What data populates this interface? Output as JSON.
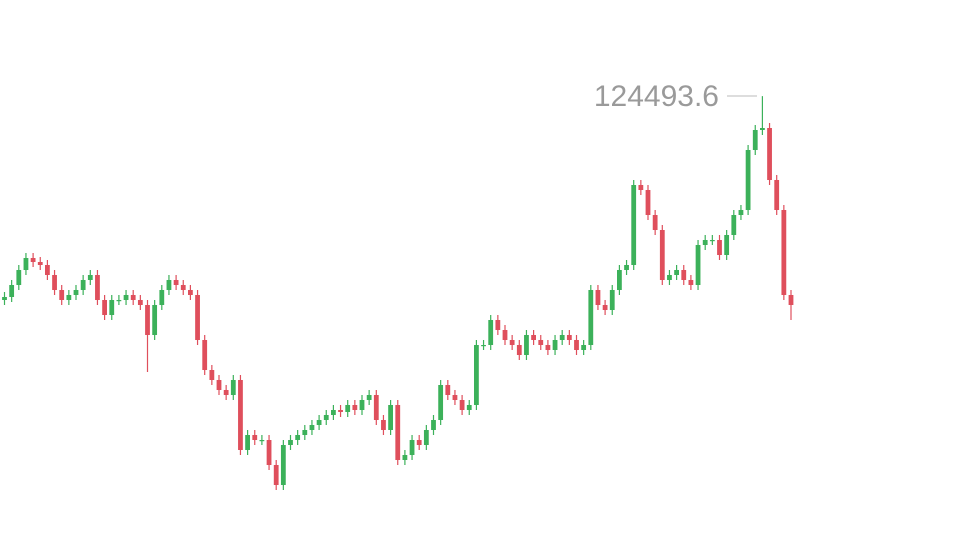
{
  "chart_data": {
    "type": "candlestick",
    "ylim": [
      102300,
      129300
    ],
    "up_color": "#3cb15a",
    "down_color": "#df4f5c",
    "open": [
      114300,
      114450,
      115050,
      115800,
      116400,
      116200,
      116050,
      115550,
      114800,
      114300,
      114550,
      114800,
      115300,
      115550,
      114300,
      113550,
      114300,
      114300,
      114550,
      114300,
      114050,
      112550,
      114050,
      114800,
      115300,
      115050,
      114800,
      114550,
      112300,
      110800,
      110300,
      109800,
      109550,
      110300,
      106800,
      107550,
      107300,
      107300,
      106050,
      105050,
      107050,
      107300,
      107550,
      107800,
      108050,
      108300,
      108550,
      108800,
      108700,
      109050,
      108800,
      109300,
      109550,
      108300,
      107800,
      109050,
      106300,
      106550,
      107300,
      107050,
      107800,
      108300,
      110050,
      109550,
      109300,
      108800,
      109050,
      112050,
      112050,
      113300,
      112800,
      112300,
      112050,
      111550,
      112550,
      112300,
      112050,
      111800,
      112300,
      112550,
      112300,
      111800,
      112050,
      114800,
      114050,
      113800,
      114800,
      115800,
      116050,
      120050,
      119800,
      118550,
      117800,
      115300,
      115550,
      115800,
      115300,
      115050,
      117050,
      117300,
      117300,
      116550,
      117550,
      118550,
      118800,
      121800,
      122800,
      122900,
      120300,
      118800,
      114550
    ],
    "high": [
      114700,
      115300,
      116050,
      116650,
      116650,
      116450,
      116300,
      115800,
      115050,
      114800,
      115050,
      115550,
      115800,
      115800,
      114550,
      114550,
      114550,
      114800,
      114800,
      114550,
      114300,
      114300,
      115050,
      115550,
      115550,
      115300,
      115050,
      114800,
      112550,
      111050,
      110550,
      110050,
      110550,
      110550,
      107800,
      107800,
      107550,
      107550,
      106300,
      107300,
      107550,
      107800,
      108050,
      108300,
      108550,
      108800,
      109050,
      109050,
      109300,
      109300,
      109550,
      109800,
      109800,
      108550,
      109300,
      109300,
      106800,
      107550,
      107550,
      108050,
      108550,
      110300,
      110300,
      109800,
      109550,
      109300,
      112300,
      112300,
      113550,
      113550,
      113050,
      112550,
      112300,
      112800,
      112800,
      112550,
      112300,
      112550,
      112800,
      112800,
      112550,
      112300,
      115050,
      115050,
      114300,
      115050,
      116050,
      116300,
      120300,
      120300,
      120050,
      118800,
      118050,
      115800,
      116050,
      116050,
      115550,
      117300,
      117550,
      117550,
      117550,
      117800,
      118800,
      119050,
      122050,
      123050,
      124493.6,
      123150,
      120550,
      119050,
      114800
    ],
    "low": [
      114050,
      114200,
      114800,
      115550,
      115950,
      115800,
      115300,
      114550,
      114050,
      114050,
      114300,
      114550,
      115050,
      114050,
      113300,
      113300,
      114050,
      114050,
      114050,
      113800,
      110700,
      112300,
      113800,
      114550,
      114800,
      114550,
      114300,
      112050,
      110550,
      110050,
      109550,
      109300,
      109300,
      106550,
      106550,
      107050,
      107050,
      105800,
      104800,
      104800,
      106800,
      107050,
      107300,
      107550,
      107800,
      108050,
      108300,
      108450,
      108450,
      108550,
      108550,
      109050,
      108050,
      107550,
      107550,
      106050,
      106050,
      106300,
      106800,
      106800,
      107550,
      108050,
      109300,
      109050,
      108550,
      108550,
      108800,
      111800,
      111800,
      112550,
      112050,
      111800,
      111300,
      111300,
      112050,
      111800,
      111550,
      111550,
      112050,
      112050,
      111550,
      111550,
      111800,
      113800,
      113550,
      113550,
      114550,
      115550,
      115800,
      119550,
      118300,
      117550,
      115050,
      115050,
      115300,
      115050,
      114800,
      114800,
      116800,
      117050,
      116300,
      116300,
      117300,
      118300,
      118550,
      121550,
      122550,
      120050,
      118550,
      114300,
      113300
    ],
    "close": [
      114450,
      115050,
      115800,
      116400,
      116200,
      116050,
      115550,
      114800,
      114300,
      114550,
      114800,
      115300,
      115550,
      114300,
      113550,
      114300,
      114300,
      114550,
      114300,
      114050,
      112550,
      114050,
      114800,
      115300,
      115050,
      114800,
      114550,
      112300,
      110800,
      110300,
      109800,
      109550,
      110300,
      106800,
      107550,
      107300,
      107300,
      106050,
      105050,
      107050,
      107300,
      107550,
      107800,
      108050,
      108300,
      108550,
      108800,
      108700,
      109050,
      108800,
      109300,
      109550,
      108300,
      107800,
      109050,
      106300,
      106550,
      107300,
      107050,
      107800,
      108300,
      110050,
      109550,
      109300,
      108800,
      109050,
      112050,
      112050,
      113300,
      112800,
      112300,
      112050,
      111550,
      112550,
      112300,
      112050,
      111800,
      112300,
      112550,
      112300,
      111800,
      112050,
      114800,
      114050,
      113800,
      114800,
      115800,
      116050,
      120050,
      119800,
      118550,
      117800,
      115300,
      115550,
      115800,
      115300,
      115050,
      117050,
      117300,
      117300,
      116550,
      117550,
      118550,
      118800,
      121800,
      122800,
      122900,
      120300,
      118800,
      114550,
      114050
    ]
  }
}
